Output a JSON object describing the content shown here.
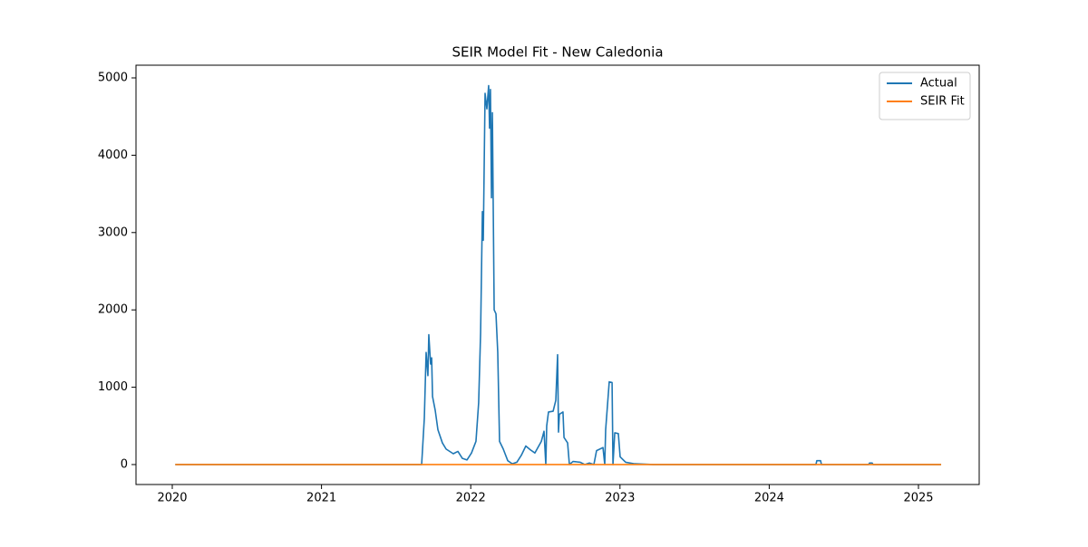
{
  "chart_data": {
    "type": "line",
    "title": "SEIR Model Fit - New Caledonia",
    "x": [
      2020.02,
      2021.671,
      2021.689,
      2021.701,
      2021.713,
      2021.719,
      2021.731,
      2021.738,
      2021.744,
      2021.762,
      2021.78,
      2021.81,
      2021.835,
      2021.883,
      2021.914,
      2021.944,
      2021.975,
      2022.005,
      2022.035,
      2022.053,
      2022.066,
      2022.078,
      2022.084,
      2022.096,
      2022.108,
      2022.12,
      2022.126,
      2022.132,
      2022.139,
      2022.145,
      2022.157,
      2022.169,
      2022.181,
      2022.193,
      2022.218,
      2022.248,
      2022.278,
      2022.309,
      2022.339,
      2022.369,
      2022.4,
      2022.43,
      2022.473,
      2022.491,
      2022.503,
      2022.509,
      2022.521,
      2022.552,
      2022.57,
      2022.582,
      2022.588,
      2022.594,
      2022.618,
      2022.625,
      2022.649,
      2022.661,
      2022.685,
      2022.734,
      2022.764,
      2022.795,
      2022.825,
      2022.843,
      2022.886,
      2022.898,
      2022.904,
      2022.928,
      2022.947,
      2022.953,
      2022.965,
      2022.989,
      2023.001,
      2023.038,
      2023.098,
      2023.22,
      2024.313,
      2024.319,
      2024.344,
      2024.35,
      2024.666,
      2024.672,
      2024.69,
      2024.696,
      2025.152
    ],
    "series": [
      {
        "name": "Actual",
        "color": "#1f77b4",
        "values": [
          0,
          0,
          600,
          1450,
          1150,
          1680,
          1300,
          1380,
          880,
          700,
          450,
          280,
          200,
          140,
          170,
          80,
          60,
          150,
          300,
          800,
          1700,
          3270,
          2900,
          4800,
          4600,
          4900,
          4350,
          4850,
          3450,
          4550,
          2000,
          1950,
          1450,
          300,
          200,
          50,
          10,
          30,
          120,
          240,
          190,
          150,
          300,
          430,
          0,
          500,
          680,
          690,
          830,
          1420,
          420,
          650,
          680,
          350,
          280,
          0,
          40,
          30,
          0,
          20,
          0,
          180,
          220,
          0,
          450,
          1070,
          1060,
          0,
          410,
          400,
          100,
          30,
          10,
          0,
          0,
          50,
          50,
          0,
          0,
          20,
          20,
          0,
          0
        ]
      },
      {
        "name": "SEIR Fit",
        "color": "#ff7f0e",
        "x": [
          2020.02,
          2025.152
        ],
        "values": [
          0,
          0
        ]
      }
    ],
    "xlim": [
      2019.757,
      2025.407
    ],
    "xticks": [
      2020,
      2021,
      2022,
      2023,
      2024,
      2025
    ],
    "ylim": [
      -258,
      5164
    ],
    "yticks": [
      0,
      1000,
      2000,
      3000,
      4000,
      5000
    ],
    "grid": false,
    "legend": "upper right"
  }
}
